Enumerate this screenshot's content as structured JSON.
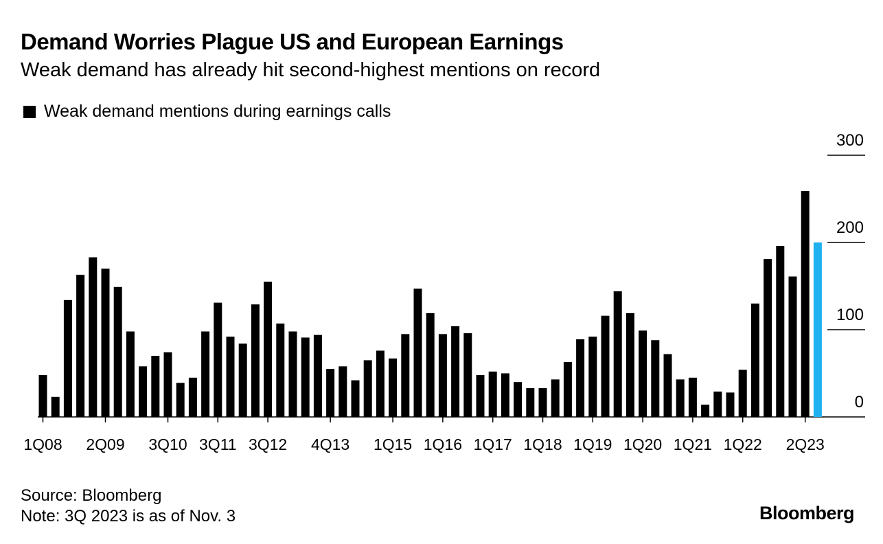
{
  "title": "Demand Worries Plague US and European Earnings",
  "subtitle": "Weak demand has already hit second-highest mentions on record",
  "legend_label": "Weak demand mentions during earnings calls",
  "source": "Source: Bloomberg",
  "note": "Note: 3Q 2023 is as of Nov. 3",
  "logo": "Bloomberg",
  "colors": {
    "bar": "#000000",
    "highlight": "#1fb1f0",
    "axis": "#000000"
  },
  "chart_data": {
    "type": "bar",
    "title": "Demand Worries Plague US and European Earnings",
    "ylabel": "",
    "xlabel": "",
    "ylim": [
      0,
      300
    ],
    "yticks": [
      "300",
      "200",
      "100",
      "0"
    ],
    "ytick_values": [
      300,
      200,
      100,
      0
    ],
    "tick_labels": [
      {
        "label": "1Q08",
        "index": 0
      },
      {
        "label": "2Q09",
        "index": 5
      },
      {
        "label": "3Q10",
        "index": 10
      },
      {
        "label": "3Q11",
        "index": 14
      },
      {
        "label": "3Q12",
        "index": 18
      },
      {
        "label": "4Q13",
        "index": 23
      },
      {
        "label": "1Q15",
        "index": 28
      },
      {
        "label": "1Q16",
        "index": 32
      },
      {
        "label": "1Q17",
        "index": 36
      },
      {
        "label": "1Q18",
        "index": 40
      },
      {
        "label": "1Q19",
        "index": 44
      },
      {
        "label": "1Q20",
        "index": 48
      },
      {
        "label": "1Q21",
        "index": 52
      },
      {
        "label": "1Q22",
        "index": 56
      },
      {
        "label": "2Q23",
        "index": 61
      }
    ],
    "values": [
      48,
      23,
      134,
      163,
      183,
      170,
      149,
      98,
      58,
      70,
      74,
      39,
      45,
      98,
      131,
      92,
      84,
      129,
      155,
      107,
      98,
      91,
      94,
      55,
      58,
      42,
      65,
      76,
      67,
      95,
      147,
      119,
      95,
      104,
      96,
      48,
      52,
      50,
      40,
      33,
      33,
      43,
      63,
      89,
      92,
      116,
      144,
      119,
      99,
      88,
      72,
      43,
      45,
      14,
      29,
      28,
      54,
      130,
      181,
      196,
      161,
      259,
      200
    ],
    "highlight_index": 62
  }
}
